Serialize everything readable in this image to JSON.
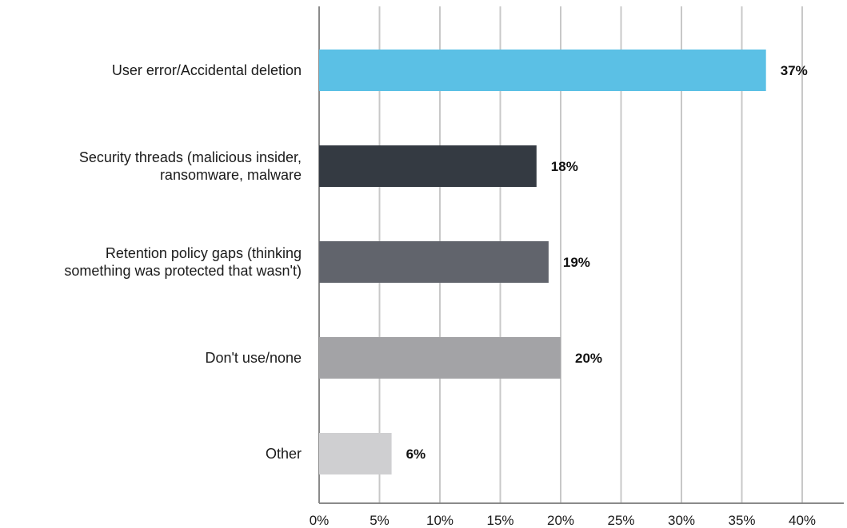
{
  "chart_data": {
    "type": "bar",
    "orientation": "horizontal",
    "title": "",
    "xlabel": "",
    "ylabel": "",
    "xlim": [
      0,
      43
    ],
    "grid": true,
    "legend": "none",
    "ticks": [
      "0%",
      "5%",
      "10%",
      "15%",
      "20%",
      "25%",
      "30%",
      "35%",
      "40%"
    ],
    "tick_values": [
      0,
      5,
      10,
      15,
      20,
      25,
      30,
      35,
      40
    ],
    "categories": [
      [
        "User error/Accidental deletion"
      ],
      [
        "Security threads (malicious insider,",
        "ransomware, malware"
      ],
      [
        "Retention policy gaps (thinking",
        "something was protected that wasn't)"
      ],
      [
        "Don't use/none"
      ],
      [
        "Other"
      ]
    ],
    "values": [
      37,
      18,
      19,
      20,
      6
    ],
    "value_labels": [
      "37%",
      "18%",
      "19%",
      "20%",
      "6%"
    ],
    "colors": [
      "#5bc0e5",
      "#343a42",
      "#61646c",
      "#a3a3a6",
      "#cfcfd1"
    ]
  }
}
